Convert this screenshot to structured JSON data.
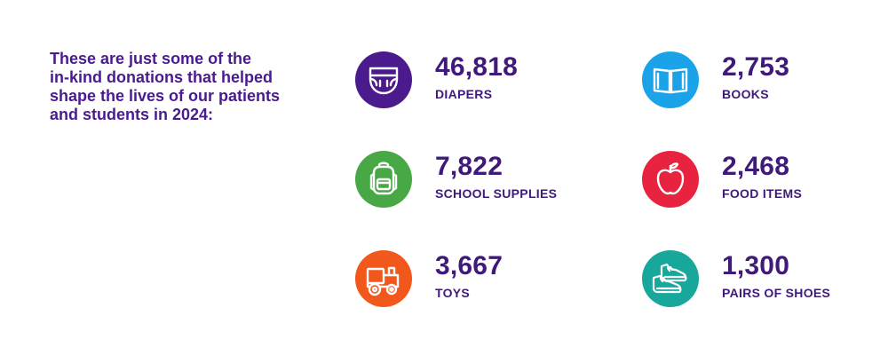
{
  "intro_text": "These are just some of the\nin-kind donations that helped\nshape the lives of our patients\nand students in 2024:",
  "colors": {
    "text_purple": "#3f1a7b",
    "intro_purple": "#4a1a8f",
    "diapers_circle": "#4b1a8c",
    "books_circle": "#1aa3e8",
    "school_supplies_circle": "#47a845",
    "food_items_circle": "#e8233f",
    "toys_circle": "#f2571c",
    "shoes_circle": "#17a89b"
  },
  "stats": [
    {
      "id": "diapers",
      "value": "46,818",
      "label": "DIAPERS",
      "icon": "diaper-icon"
    },
    {
      "id": "books",
      "value": "2,753",
      "label": "BOOKS",
      "icon": "book-icon"
    },
    {
      "id": "school_supplies",
      "value": "7,822",
      "label": "SCHOOL SUPPLIES",
      "icon": "backpack-icon"
    },
    {
      "id": "food_items",
      "value": "2,468",
      "label": "FOOD ITEMS",
      "icon": "apple-icon"
    },
    {
      "id": "toys",
      "value": "3,667",
      "label": "TOYS",
      "icon": "toy-train-icon"
    },
    {
      "id": "shoes",
      "value": "1,300",
      "label": "PAIRS OF SHOES",
      "icon": "shoes-icon"
    }
  ]
}
